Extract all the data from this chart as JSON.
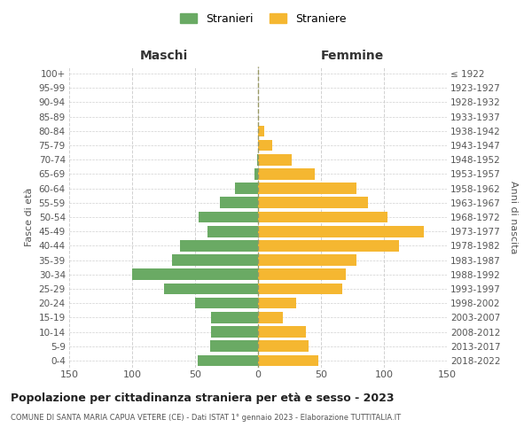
{
  "age_groups": [
    "0-4",
    "5-9",
    "10-14",
    "15-19",
    "20-24",
    "25-29",
    "30-34",
    "35-39",
    "40-44",
    "45-49",
    "50-54",
    "55-59",
    "60-64",
    "65-69",
    "70-74",
    "75-79",
    "80-84",
    "85-89",
    "90-94",
    "95-99",
    "100+"
  ],
  "birth_years": [
    "2018-2022",
    "2013-2017",
    "2008-2012",
    "2003-2007",
    "1998-2002",
    "1993-1997",
    "1988-1992",
    "1983-1987",
    "1978-1982",
    "1973-1977",
    "1968-1972",
    "1963-1967",
    "1958-1962",
    "1953-1957",
    "1948-1952",
    "1943-1947",
    "1938-1942",
    "1933-1937",
    "1928-1932",
    "1923-1927",
    "≤ 1922"
  ],
  "males": [
    48,
    38,
    37,
    37,
    50,
    75,
    100,
    68,
    62,
    40,
    47,
    30,
    18,
    3,
    1,
    0,
    0,
    0,
    0,
    0,
    0
  ],
  "females": [
    48,
    40,
    38,
    20,
    30,
    67,
    70,
    78,
    112,
    132,
    103,
    87,
    78,
    45,
    27,
    11,
    5,
    0,
    0,
    0,
    0
  ],
  "male_color": "#6aaa64",
  "female_color": "#f5b731",
  "male_label": "Stranieri",
  "female_label": "Straniere",
  "header_left": "Maschi",
  "header_right": "Femmine",
  "ylabel_left": "Fasce di età",
  "ylabel_right": "Anni di nascita",
  "title": "Popolazione per cittadinanza straniera per età e sesso - 2023",
  "subtitle": "COMUNE DI SANTA MARIA CAPUA VETERE (CE) - Dati ISTAT 1° gennaio 2023 - Elaborazione TUTTITALIA.IT",
  "xlim": 150,
  "xticks": [
    150,
    100,
    50,
    0,
    50,
    100,
    150
  ],
  "background_color": "#ffffff",
  "grid_color": "#cccccc",
  "vline_color": "#999966"
}
